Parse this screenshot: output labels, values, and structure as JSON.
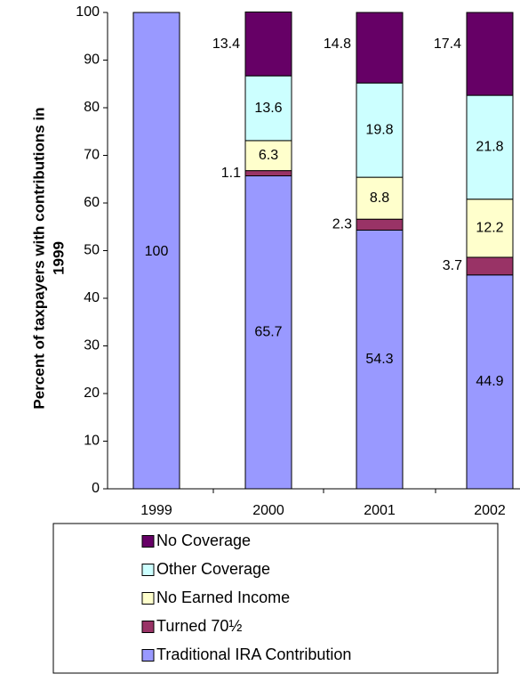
{
  "chart_data": {
    "type": "bar",
    "stacked": true,
    "title": "",
    "xlabel": "",
    "ylabel": "Percent of taxpayers with contributions in 1999",
    "ylabel_lines": [
      "Percent of taxpayers with contributions in",
      "1999"
    ],
    "categories": [
      "1999",
      "2000",
      "2001",
      "2002"
    ],
    "ylim": [
      0,
      100
    ],
    "yticks": [
      "0",
      "10",
      "20",
      "30",
      "40",
      "50",
      "60",
      "70",
      "80",
      "90",
      "100"
    ],
    "grid": false,
    "legend_position": "bottom",
    "series": [
      {
        "name": "Traditional IRA Contribution",
        "color": "#9999ff",
        "values": [
          100,
          65.7,
          54.3,
          44.9
        ],
        "labels": [
          "100",
          "65.7",
          "54.3",
          "44.9"
        ]
      },
      {
        "name": "Turned 70½",
        "color": "#993366",
        "values": [
          0,
          1.1,
          2.3,
          3.7
        ],
        "labels": [
          "",
          "1.1",
          "2.3",
          "3.7"
        ]
      },
      {
        "name": "No Earned Income",
        "color": "#ffffcc",
        "values": [
          0,
          6.3,
          8.8,
          12.2
        ],
        "labels": [
          "",
          "6.3",
          "8.8",
          "12.2"
        ]
      },
      {
        "name": "Other Coverage",
        "color": "#ccffff",
        "values": [
          0,
          13.6,
          19.8,
          21.8
        ],
        "labels": [
          "",
          "13.6",
          "19.8",
          "21.8"
        ]
      },
      {
        "name": "No Coverage",
        "color": "#660066",
        "values": [
          0,
          13.4,
          14.8,
          17.4
        ],
        "labels": [
          "",
          "13.4",
          "14.8",
          "17.4"
        ]
      }
    ],
    "legend_order": [
      "No Coverage",
      "Other Coverage",
      "No Earned Income",
      "Turned 70½",
      "Traditional IRA Contribution"
    ]
  }
}
